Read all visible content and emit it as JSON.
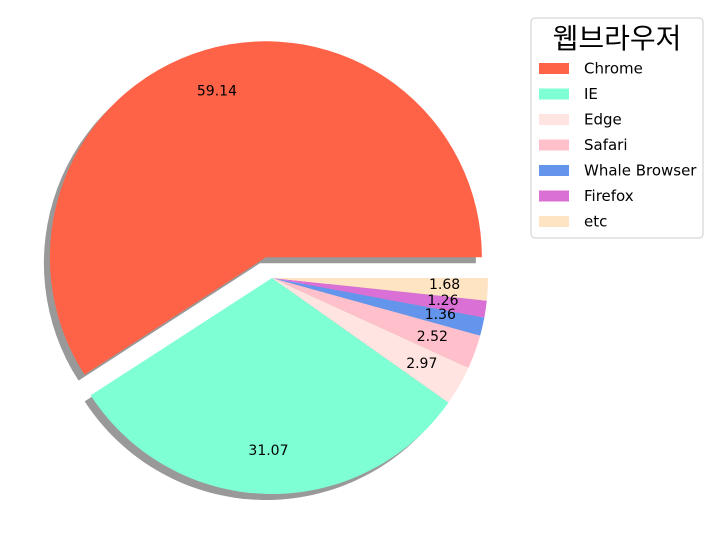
{
  "chart_data": {
    "type": "pie",
    "legend_title": "웹브라우저",
    "legend_placement": "upper-right",
    "start_angle_deg": 0,
    "direction": "counterclockwise",
    "shadow": true,
    "slices": [
      {
        "label": "Chrome",
        "value": 59.14,
        "display": "59.14",
        "color": "#ff6347",
        "explode": 0.1
      },
      {
        "label": "IE",
        "value": 31.07,
        "display": "31.07",
        "color": "#7fffd4",
        "explode": 0
      },
      {
        "label": "Edge",
        "value": 2.97,
        "display": "2.97",
        "color": "#ffe4e1",
        "explode": 0
      },
      {
        "label": "Safari",
        "value": 2.52,
        "display": "2.52",
        "color": "#ffc0cb",
        "explode": 0
      },
      {
        "label": "Whale Browser",
        "value": 1.36,
        "display": "1.36",
        "color": "#6495ed",
        "explode": 0
      },
      {
        "label": "Firefox",
        "value": 1.26,
        "display": "1.26",
        "color": "#da70d6",
        "explode": 0
      },
      {
        "label": "etc",
        "value": 1.68,
        "display": "1.68",
        "color": "#ffe4c4",
        "explode": 0
      }
    ]
  }
}
